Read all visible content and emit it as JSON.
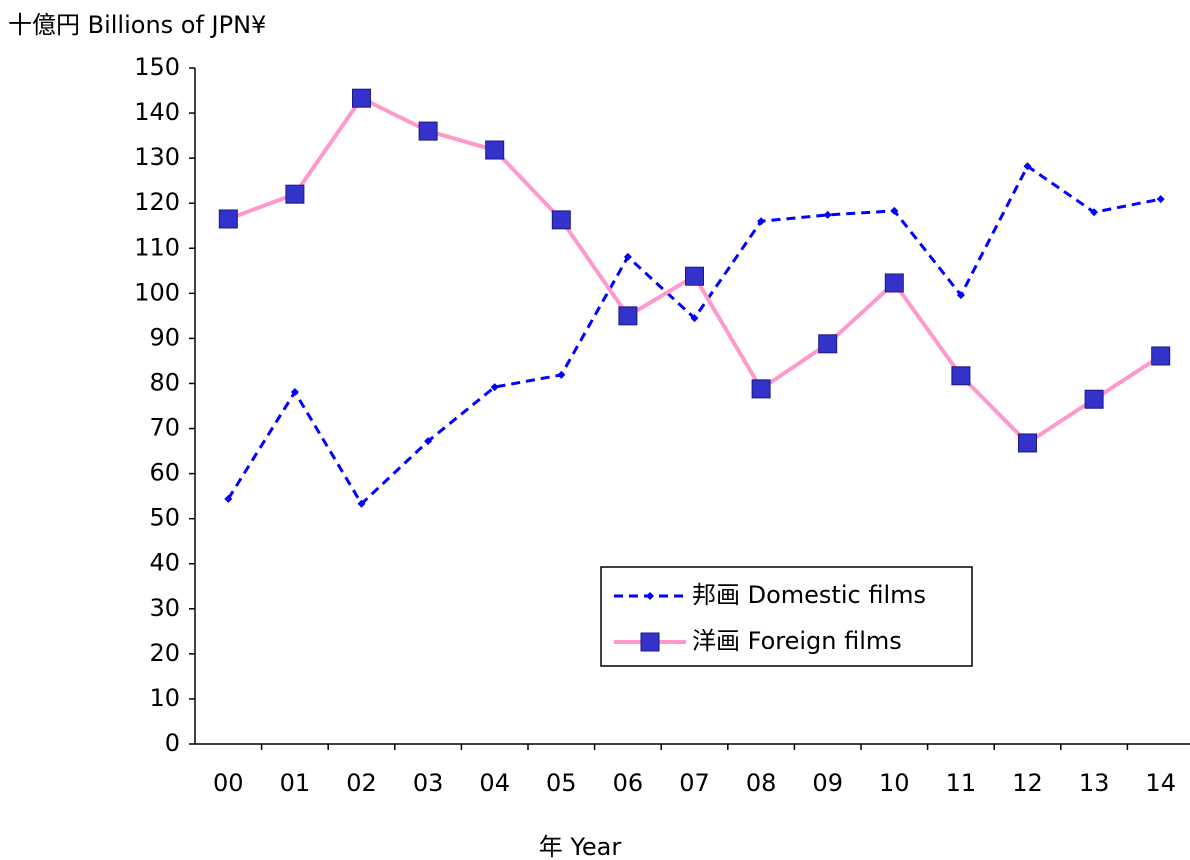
{
  "chart_data": {
    "type": "line",
    "y_label": "十億円  Billions of JPN¥",
    "x_label": "年  Year",
    "categories": [
      "00",
      "01",
      "02",
      "03",
      "04",
      "05",
      "06",
      "07",
      "08",
      "09",
      "10",
      "11",
      "12",
      "13",
      "14"
    ],
    "series": [
      {
        "name": "邦画 Domestic films",
        "color": "#0000ff",
        "line_style": "dashed",
        "marker": "diamond",
        "values": [
          54.4,
          78.1,
          53.3,
          67.2,
          79.2,
          81.9,
          108.1,
          94.5,
          116.0,
          117.4,
          118.3,
          99.6,
          128.2,
          118.0,
          120.9
        ]
      },
      {
        "name": "洋画 Foreign films",
        "color": "#ff99cc",
        "line_style": "solid",
        "marker": "square",
        "marker_color": "#3333cc",
        "values": [
          116.5,
          122.0,
          143.3,
          136.0,
          131.8,
          116.3,
          95.0,
          103.8,
          78.8,
          88.8,
          102.3,
          81.7,
          66.8,
          76.5,
          86.1
        ]
      }
    ],
    "ylim": [
      0,
      150
    ],
    "yticks": [
      0,
      10,
      20,
      30,
      40,
      50,
      60,
      70,
      80,
      90,
      100,
      110,
      120,
      130,
      140,
      150
    ],
    "grid": false
  }
}
